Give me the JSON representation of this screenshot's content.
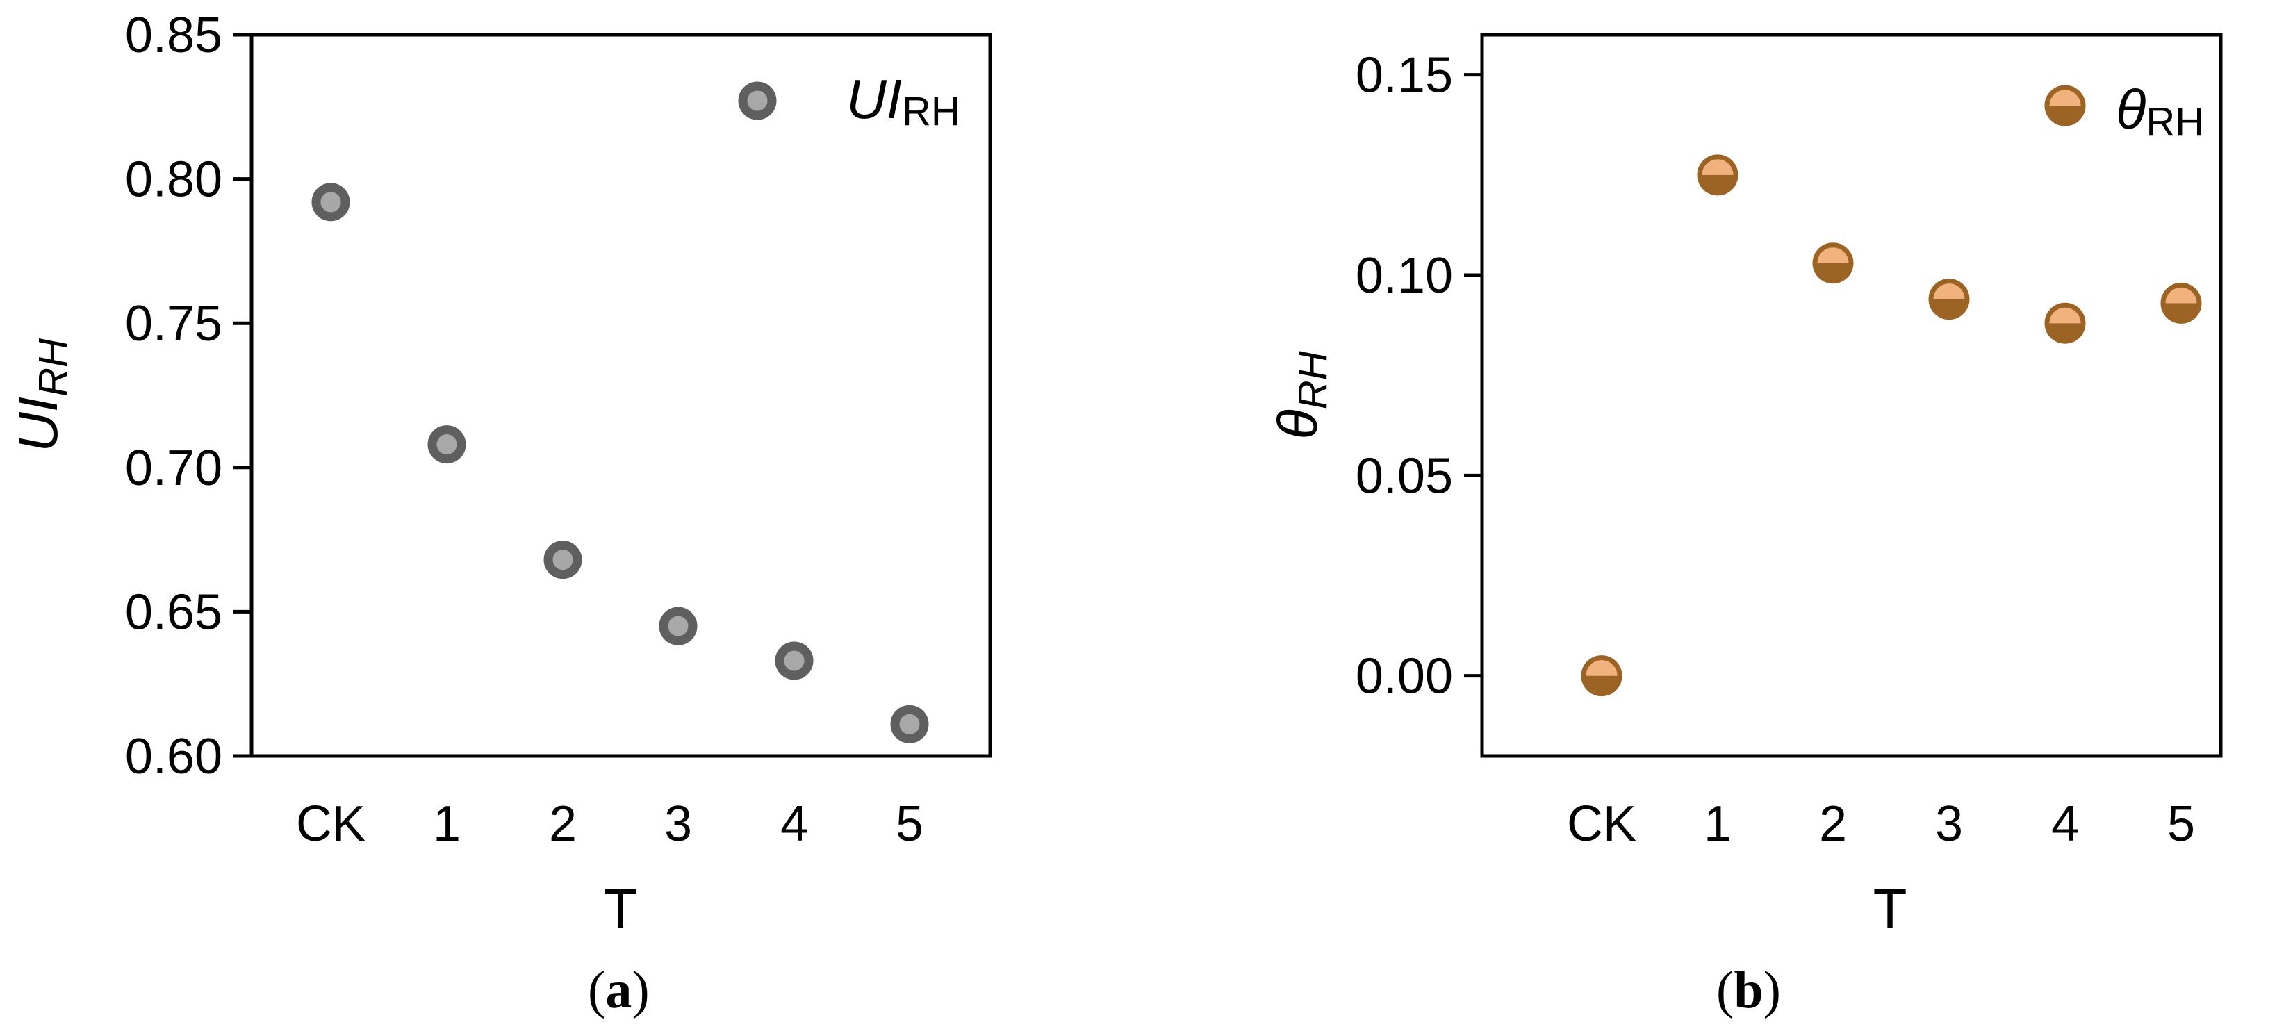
{
  "chart_data": [
    {
      "type": "scatter",
      "panel_label": {
        "open": "(",
        "letter": "a",
        "close": ")"
      },
      "xlabel": "T",
      "ylabel": {
        "main": "UI",
        "sub": "RH"
      },
      "categories": [
        "CK",
        "1",
        "2",
        "3",
        "4",
        "5"
      ],
      "ylim": [
        0.6,
        0.85
      ],
      "yticks": [
        "0.60",
        "0.65",
        "0.70",
        "0.75",
        "0.80",
        "0.85"
      ],
      "legend": {
        "main": "UI",
        "sub": "RH",
        "position": "top-right"
      },
      "series": [
        {
          "values": [
            0.792,
            0.708,
            0.668,
            0.645,
            0.633,
            0.611
          ]
        }
      ],
      "marker": {
        "outer": "#5f5f5f",
        "inner": "#a8a8a8",
        "style": "ring"
      }
    },
    {
      "type": "scatter",
      "panel_label": {
        "open": "(",
        "letter": "b",
        "close": ")"
      },
      "xlabel": "T",
      "ylabel": {
        "main": "θ",
        "sub": "RH"
      },
      "categories": [
        "CK",
        "1",
        "2",
        "3",
        "4",
        "5"
      ],
      "ylim": [
        -0.02,
        0.16
      ],
      "yticks": [
        "0.00",
        "0.05",
        "0.10",
        "0.15"
      ],
      "legend": {
        "main": "θ",
        "sub": "RH",
        "position": "top-right"
      },
      "series": [
        {
          "values": [
            0.0,
            0.125,
            0.103,
            0.094,
            0.088,
            0.093
          ]
        }
      ],
      "marker": {
        "top": "#f2b27e",
        "bottom": "#9c6424",
        "edge": "#9c6424",
        "style": "half-filled"
      }
    }
  ]
}
